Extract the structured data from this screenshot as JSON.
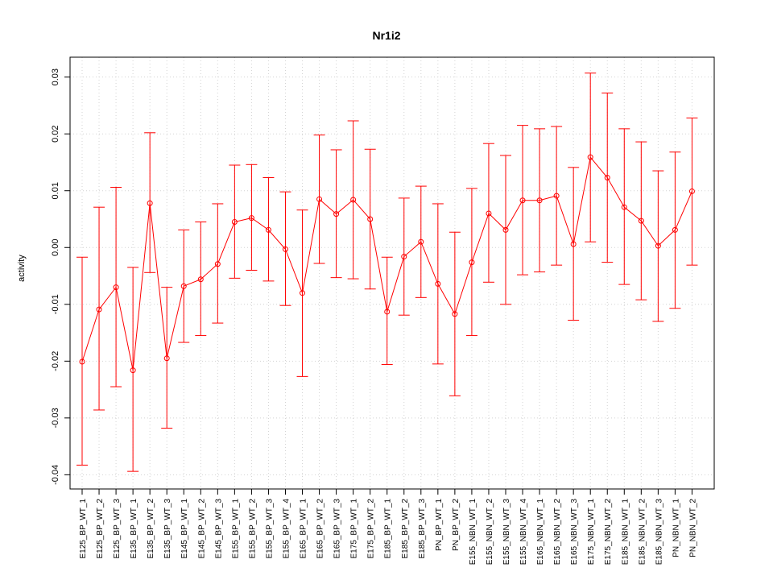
{
  "chart_data": {
    "type": "line",
    "title": "Nr1i2",
    "xlabel": "",
    "ylabel": "activity",
    "ylim": [
      -0.0425,
      0.0335
    ],
    "yticks": [
      -0.04,
      -0.03,
      -0.02,
      -0.01,
      0.0,
      0.01,
      0.02,
      0.03
    ],
    "ytick_labels": [
      "-0.04",
      "-0.03",
      "-0.02",
      "-0.01",
      "0.00",
      "0.01",
      "0.02",
      "0.03"
    ],
    "grid": true,
    "colors": {
      "series": "#ff0000",
      "grid": "#d3d3d3",
      "axis": "#000000"
    },
    "categories": [
      "E125_BP_WT_1",
      "E125_BP_WT_2",
      "E125_BP_WT_3",
      "E135_BP_WT_1",
      "E135_BP_WT_2",
      "E135_BP_WT_3",
      "E145_BP_WT_1",
      "E145_BP_WT_2",
      "E145_BP_WT_3",
      "E155_BP_WT_1",
      "E155_BP_WT_2",
      "E155_BP_WT_3",
      "E155_BP_WT_4",
      "E165_BP_WT_1",
      "E165_BP_WT_2",
      "E165_BP_WT_3",
      "E175_BP_WT_1",
      "E175_BP_WT_2",
      "E185_BP_WT_1",
      "E185_BP_WT_2",
      "E185_BP_WT_3",
      "PN_BP_WT_1",
      "PN_BP_WT_2",
      "E155_NBN_WT_1",
      "E155_NBN_WT_2",
      "E155_NBN_WT_3",
      "E155_NBN_WT_4",
      "E165_NBN_WT_1",
      "E165_NBN_WT_2",
      "E165_NBN_WT_3",
      "E175_NBN_WT_1",
      "E175_NBN_WT_2",
      "E185_NBN_WT_1",
      "E185_NBN_WT_2",
      "E185_NBN_WT_3",
      "PN_NBN_WT_1",
      "PN_NBN_WT_2"
    ],
    "series": [
      {
        "values": [
          -0.0201,
          -0.0109,
          -0.007,
          -0.0216,
          0.0078,
          -0.0195,
          -0.0068,
          -0.0056,
          -0.0029,
          0.0045,
          0.0052,
          0.0031,
          -0.0003,
          -0.008,
          0.0085,
          0.0059,
          0.0084,
          0.005,
          -0.0113,
          -0.0016,
          0.001,
          -0.0064,
          -0.0117,
          -0.0026,
          0.006,
          0.0031,
          0.0083,
          0.0083,
          0.0091,
          0.0006,
          0.0159,
          0.0123,
          0.0071,
          0.0047,
          0.0003,
          0.0031,
          0.0099
        ],
        "upper": [
          -0.0017,
          0.0071,
          0.0106,
          -0.0035,
          0.0202,
          -0.007,
          0.0031,
          0.0045,
          0.0077,
          0.0145,
          0.0146,
          0.0123,
          0.0098,
          0.0066,
          0.0198,
          0.0172,
          0.0223,
          0.0173,
          -0.0017,
          0.0087,
          0.0108,
          0.0077,
          0.0027,
          0.0104,
          0.0183,
          0.0162,
          0.0215,
          0.0209,
          0.0213,
          0.0141,
          0.0307,
          0.0272,
          0.0209,
          0.0186,
          0.0135,
          0.0168,
          0.0228
        ],
        "lower": [
          -0.0383,
          -0.0286,
          -0.0245,
          -0.0394,
          -0.0044,
          -0.0318,
          -0.0167,
          -0.0155,
          -0.0133,
          -0.0054,
          -0.004,
          -0.0059,
          -0.0102,
          -0.0227,
          -0.0028,
          -0.0053,
          -0.0055,
          -0.0073,
          -0.0206,
          -0.0119,
          -0.0088,
          -0.0205,
          -0.0261,
          -0.0155,
          -0.0061,
          -0.01,
          -0.0048,
          -0.0043,
          -0.0031,
          -0.0128,
          0.001,
          -0.0026,
          -0.0065,
          -0.0092,
          -0.013,
          -0.0107,
          -0.0031
        ]
      }
    ]
  }
}
